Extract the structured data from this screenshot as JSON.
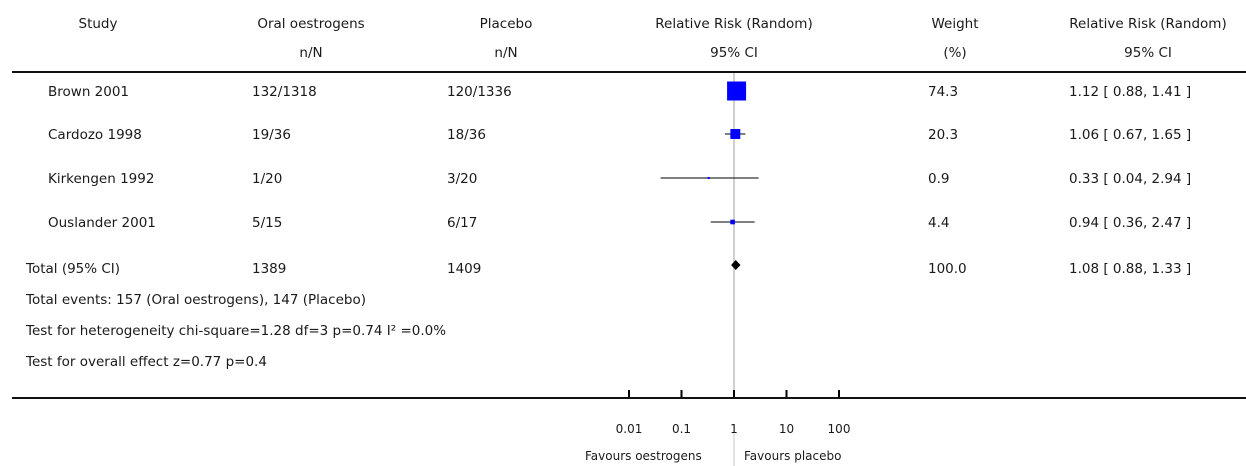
{
  "header": {
    "study": "Study",
    "group1": {
      "title": "Oral oestrogens",
      "sub": "n/N"
    },
    "group2": {
      "title": "Placebo",
      "sub": "n/N"
    },
    "effect": {
      "title": "Relative Risk (Random)",
      "sub": "95% CI"
    },
    "weight": {
      "title": "Weight",
      "sub": "(%)"
    },
    "effect_text": {
      "title": "Relative Risk (Random)",
      "sub": "95% CI"
    }
  },
  "total": {
    "label": "Total (95% CI)",
    "group1": "1389",
    "group2": "1409",
    "weight": "100.0",
    "ci_text": "1.08 [ 0.88, 1.33 ]"
  },
  "footnotes": {
    "events": "Total events: 157 (Oral oestrogens), 147 (Placebo)",
    "heterogeneity": "Test for heterogeneity chi-square=1.28 df=3 p=0.74 I² =0.0%",
    "overall": "Test for overall effect z=0.77   p=0.4"
  },
  "axis": {
    "left_label": "Favours oestrogens",
    "right_label": "Favours placebo"
  },
  "colors": {
    "marker": "#0000ff",
    "line": "#000000",
    "null_line": "#a0a0a0"
  },
  "chart_data": {
    "type": "forest",
    "scale": "log",
    "xlim": [
      0.01,
      100
    ],
    "ticks": [
      {
        "value": 0.01,
        "label": "0.01"
      },
      {
        "value": 0.1,
        "label": "0.1"
      },
      {
        "value": 1,
        "label": "1"
      },
      {
        "value": 10,
        "label": "10"
      },
      {
        "value": 100,
        "label": "100"
      }
    ],
    "studies": [
      {
        "name": "Brown 2001",
        "group1": "132/1318",
        "group2": "120/1336",
        "weight": 74.3,
        "weight_text": "74.3",
        "rr": 1.12,
        "lo": 0.88,
        "hi": 1.41,
        "ci_text": "1.12 [ 0.88, 1.41 ]"
      },
      {
        "name": "Cardozo 1998",
        "group1": "19/36",
        "group2": "18/36",
        "weight": 20.3,
        "weight_text": "20.3",
        "rr": 1.06,
        "lo": 0.67,
        "hi": 1.65,
        "ci_text": "1.06 [ 0.67, 1.65 ]"
      },
      {
        "name": "Kirkengen 1992",
        "group1": "1/20",
        "group2": "3/20",
        "weight": 0.9,
        "weight_text": "0.9",
        "rr": 0.33,
        "lo": 0.04,
        "hi": 2.94,
        "ci_text": "0.33 [ 0.04, 2.94 ]"
      },
      {
        "name": "Ouslander 2001",
        "group1": "5/15",
        "group2": "6/17",
        "weight": 4.4,
        "weight_text": "4.4",
        "rr": 0.94,
        "lo": 0.36,
        "hi": 2.47,
        "ci_text": "0.94 [ 0.36, 2.47 ]"
      }
    ],
    "pooled": {
      "rr": 1.08,
      "lo": 0.88,
      "hi": 1.33
    }
  }
}
